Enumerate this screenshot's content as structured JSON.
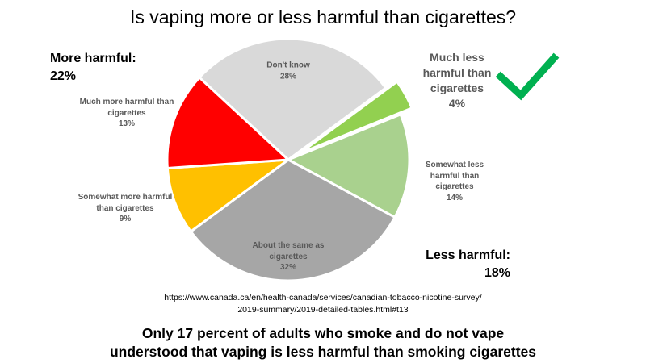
{
  "chart_data": {
    "type": "pie",
    "title": "Is vaping more or less harmful than cigarettes?",
    "categories": [
      "Don't know",
      "Much less harmful than cigarettes",
      "Somewhat less harmful than cigarettes",
      "About the same as cigarettes",
      "Somewhat more harmful than cigarettes",
      "Much more harmful than cigarettes"
    ],
    "values": [
      28,
      4,
      14,
      32,
      9,
      13
    ],
    "value_labels": [
      "28%",
      "4%",
      "14%",
      "32%",
      "9%",
      "13%"
    ],
    "colors": [
      "#d9d9d9",
      "#92d050",
      "#a9d18e",
      "#a6a6a6",
      "#ffc000",
      "#ff0000"
    ],
    "exploded": [
      false,
      true,
      false,
      false,
      false,
      false
    ],
    "annotations": [
      {
        "text": "More harmful:",
        "value_label": "22%"
      },
      {
        "text": "Less harmful:",
        "value_label": "18%"
      }
    ],
    "source": [
      "https://www.canada.ca/en/health-canada/services/canadian-tobacco-nicotine-survey/",
      "2019-summary/2019-detailed-tables.html#t13"
    ],
    "footnote": [
      "Only 17 percent of adults who smoke and do not vape",
      "understood that vaping is less harmful than smoking cigarettes"
    ]
  }
}
